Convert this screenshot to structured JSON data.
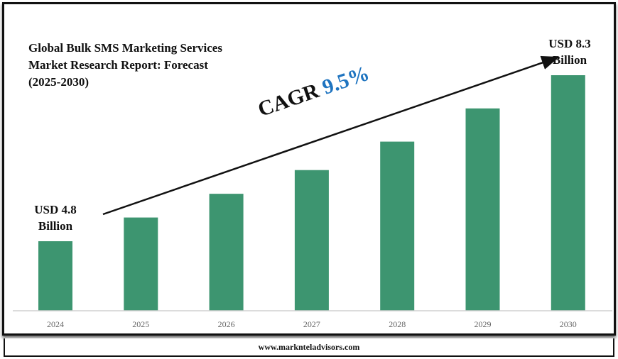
{
  "chart_data": {
    "type": "bar",
    "title": "Global Bulk SMS Marketing Services Market Research Report: Forecast (2025-2030)",
    "categories": [
      "2024",
      "2025",
      "2026",
      "2027",
      "2028",
      "2029",
      "2030"
    ],
    "values": [
      4.8,
      5.3,
      5.8,
      6.3,
      6.9,
      7.6,
      8.3
    ],
    "unit": "USD Billion",
    "ylim": [
      3.3,
      8.3
    ],
    "grid": false,
    "bar_color": "#3d9570",
    "annotations": {
      "start_label": "USD 4.8 Billion",
      "start_line1": "USD 4.8",
      "start_line2": "Billion",
      "end_line1": "USD 8.3",
      "end_line2": "Billion",
      "cagr_label": "CAGR",
      "cagr_value": "9.5%",
      "cagr_color": "#1f74c0"
    }
  },
  "footer": {
    "website": "www.marknteladvisors.com"
  }
}
